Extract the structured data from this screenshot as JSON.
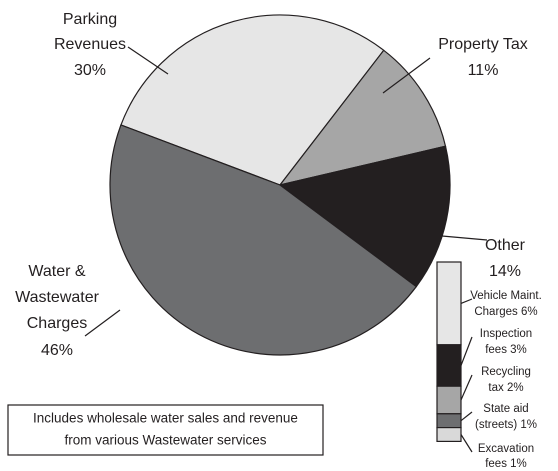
{
  "chart_data": [
    {
      "type": "pie",
      "categories": [
        [
          "Parking",
          "Revenues"
        ],
        [
          "Property Tax"
        ],
        [
          "Other"
        ],
        [
          "Water &",
          "Wastewater",
          "Charges"
        ]
      ],
      "values": [
        30,
        11,
        14,
        46
      ],
      "value_labels": [
        "30%",
        "11%",
        "14%",
        "46%"
      ],
      "colors": [
        "#e6e6e6",
        "#a6a6a6",
        "#231f20",
        "#6d6e70"
      ],
      "annotation": [
        "Includes wholesale water sales and revenue",
        "from various Wastewater services"
      ]
    },
    {
      "type": "stacked-bar",
      "categories": [
        [
          "Vehicle Maint.",
          "Charges 6%"
        ],
        [
          "Inspection",
          "fees 3%"
        ],
        [
          "Recycling",
          "tax 2%"
        ],
        [
          "State aid",
          "(streets) 1%"
        ],
        [
          "Excavation",
          "fees 1%"
        ]
      ],
      "values": [
        6,
        3,
        2,
        1,
        1
      ],
      "colors": [
        "#e6e6e6",
        "#231f20",
        "#a6a6a6",
        "#6d6e70",
        "#d9d9d9"
      ]
    }
  ]
}
